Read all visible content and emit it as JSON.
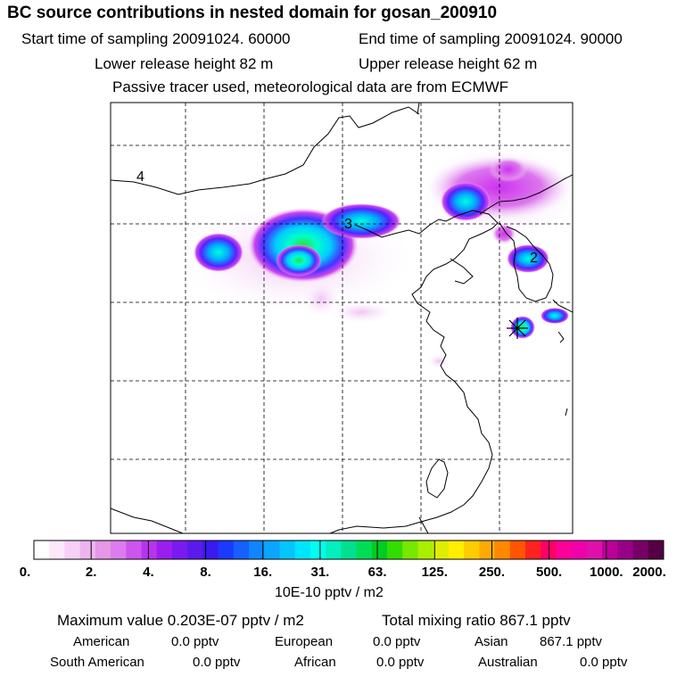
{
  "header": {
    "title": "BC  source contributions in nested domain for gosan_200910",
    "start_time": "Start time of sampling 20091024. 60000",
    "end_time": "End time of sampling 20091024. 90000",
    "lower_height": "Lower release height   82 m",
    "upper_height": "Upper release height   62 m",
    "tracer_note": "Passive tracer used, meteorological data are from ECMWF"
  },
  "map": {
    "contour_labels": [
      "4",
      "3",
      "2"
    ],
    "receptor_marker": "star-icon"
  },
  "colorbar": {
    "tick_labels": [
      "0.",
      "2.",
      "4.",
      "8.",
      "16.",
      "31.",
      "63.",
      "125.",
      "250.",
      "500.",
      "1000.",
      "2000."
    ],
    "unit": "10E-10 pptv / m2",
    "colors": [
      "#ffffff",
      "#fbe8fb",
      "#f6d0f6",
      "#eeb4ee",
      "#e697e6",
      "#dc7cf0",
      "#cc55ee",
      "#b833ee",
      "#9a1fee",
      "#7a1aee",
      "#5a1aee",
      "#3a1aee",
      "#1a3aff",
      "#1560ff",
      "#1085ff",
      "#0aa5ff",
      "#05c5ff",
      "#00e5ff",
      "#00ffee",
      "#00f0c0",
      "#00e090",
      "#00dd55",
      "#00cc22",
      "#33dd00",
      "#77e800",
      "#aaee00",
      "#ddee00",
      "#ffee00",
      "#ffcc00",
      "#ffaa00",
      "#ff8800",
      "#ff5500",
      "#ff2222",
      "#ff0066",
      "#ff0099",
      "#ee00aa",
      "#dd11aa",
      "#bb0099",
      "#990088",
      "#770066",
      "#550044"
    ]
  },
  "stats": {
    "max_value": "Maximum value  0.203E-07 pptv / m2",
    "total_mixing": "Total mixing ratio      867.1 pptv",
    "american_label": "American",
    "american_value": "0.0 pptv",
    "european_label": "European",
    "european_value": "0.0 pptv",
    "asian_label": "Asian",
    "asian_value": "867.1 pptv",
    "south_american_label": "South American",
    "south_american_value": "0.0 pptv",
    "african_label": "African",
    "african_value": "0.0 pptv",
    "australian_label": "Australian",
    "australian_value": "0.0 pptv"
  }
}
